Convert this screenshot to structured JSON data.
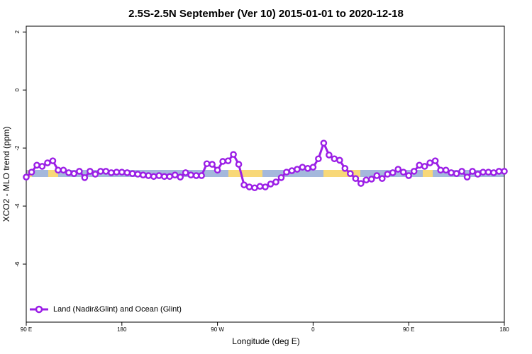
{
  "chart_data": {
    "type": "line",
    "title": "2.5S-2.5N September (Ver 10)   2015-01-01 to 2020-12-18",
    "x_label": "Longitude (deg E)",
    "y_label": "XCO2 - MLO trend (ppm)",
    "x": [
      90,
      95,
      100,
      105,
      110,
      115,
      120,
      125,
      130,
      135,
      140,
      145,
      150,
      155,
      160,
      165,
      170,
      175,
      180,
      185,
      190,
      195,
      200,
      205,
      210,
      215,
      220,
      225,
      230,
      235,
      240,
      245,
      250,
      255,
      260,
      265,
      270,
      275,
      280,
      285,
      290,
      295,
      300,
      305,
      310,
      315,
      320,
      325,
      330,
      335,
      340,
      345,
      350,
      355,
      360,
      365,
      370,
      375,
      380,
      385,
      390,
      395,
      400,
      405,
      410,
      415,
      420,
      425,
      430,
      435,
      440,
      445,
      450,
      455,
      460,
      465,
      470,
      475,
      480,
      485,
      490,
      495,
      500,
      505,
      510,
      515,
      520,
      525,
      530,
      535,
      540
    ],
    "series": [
      {
        "name": "Land (Nadir&Glint) and Ocean (Glint)",
        "color": "#9b1ee6",
        "values": [
          -3.0,
          -2.83,
          -2.59,
          -2.63,
          -2.51,
          -2.44,
          -2.76,
          -2.76,
          -2.85,
          -2.88,
          -2.8,
          -3.02,
          -2.8,
          -2.9,
          -2.8,
          -2.8,
          -2.85,
          -2.83,
          -2.83,
          -2.85,
          -2.88,
          -2.9,
          -2.93,
          -2.95,
          -2.98,
          -2.95,
          -2.98,
          -2.98,
          -2.93,
          -3.0,
          -2.85,
          -2.93,
          -2.95,
          -2.95,
          -2.54,
          -2.56,
          -2.76,
          -2.46,
          -2.44,
          -2.22,
          -2.56,
          -3.27,
          -3.34,
          -3.37,
          -3.32,
          -3.34,
          -3.24,
          -3.17,
          -3.02,
          -2.83,
          -2.78,
          -2.73,
          -2.66,
          -2.7,
          -2.66,
          -2.37,
          -1.83,
          -2.24,
          -2.37,
          -2.42,
          -2.7,
          -2.88,
          -3.05,
          -3.22,
          -3.1,
          -3.07,
          -2.95,
          -3.05,
          -2.9,
          -2.85,
          -2.73,
          -2.83,
          -2.95,
          -2.8,
          -2.59,
          -2.63,
          -2.51,
          -2.44,
          -2.76,
          -2.76,
          -2.85,
          -2.88,
          -2.8,
          -3.0,
          -2.8,
          -2.9,
          -2.83,
          -2.83,
          -2.85,
          -2.8,
          -2.8
        ]
      }
    ],
    "xlim": [
      90,
      540
    ],
    "xticks": [
      {
        "value": 90,
        "label": "90 E"
      },
      180,
      {
        "value": 270,
        "label": "90 W"
      },
      0,
      {
        "value": 450,
        "label": "90 E"
      },
      {
        "value": 540,
        "label": "180"
      }
    ],
    "ylim": [
      -8,
      2.2
    ],
    "yticks": [
      -6,
      -4,
      -2,
      0,
      2
    ],
    "legend": "bottom-left"
  }
}
